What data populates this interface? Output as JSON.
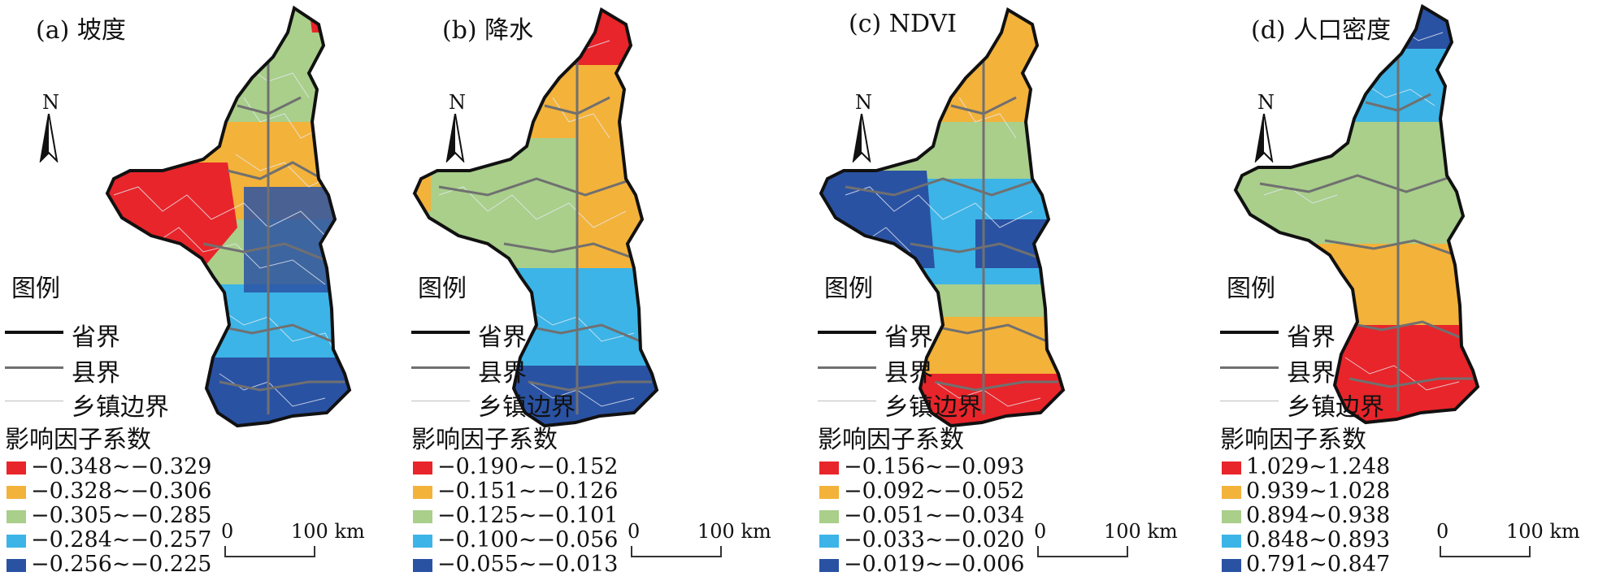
{
  "legend": {
    "title": "图例",
    "lines": [
      {
        "label": "省界",
        "color": "#111111",
        "width": 4
      },
      {
        "label": "县界",
        "color": "#707070",
        "width": 3
      },
      {
        "label": "乡镇边界",
        "color": "#bdbdbd",
        "width": 1
      }
    ],
    "coef_title": "影响因子系数"
  },
  "scale_bar": {
    "start": "0",
    "end": "100 km"
  },
  "north_label": "N",
  "class_colors": [
    "#e8252a",
    "#f3b23a",
    "#a9cf8b",
    "#3cb4e7",
    "#2a52a3"
  ],
  "panels": [
    {
      "title": "(a) 坡度",
      "classes": [
        "−0.348~−0.329",
        "−0.328~−0.306",
        "−0.305~−0.285",
        "−0.284~−0.257",
        "−0.256~−0.225"
      ],
      "zones_top_to_bottom": [
        "green",
        "yellow",
        "green",
        "blue",
        "dark-blue"
      ],
      "notes": "red in west lobe, dark blue in south"
    },
    {
      "title": "(b) 降水",
      "classes": [
        "−0.190~−0.152",
        "−0.151~−0.126",
        "−0.125~−0.101",
        "−0.100~−0.056",
        "−0.055~−0.013"
      ],
      "zones_top_to_bottom": [
        "red",
        "yellow",
        "green",
        "blue",
        "dark-blue"
      ]
    },
    {
      "title": "(c) NDVI",
      "classes": [
        "−0.156~−0.093",
        "−0.092~−0.052",
        "−0.051~−0.034",
        "−0.033~−0.020",
        "−0.019~−0.006"
      ],
      "zones_top_to_bottom": [
        "yellow",
        "green",
        "blue",
        "dark-blue",
        "red"
      ]
    },
    {
      "title": "(d) 人口密度",
      "classes": [
        "1.029~1.248",
        "0.939~1.028",
        "0.894~0.938",
        "0.848~0.893",
        "0.791~0.847"
      ],
      "zones_top_to_bottom": [
        "dark-blue",
        "blue",
        "green",
        "yellow",
        "red"
      ]
    }
  ]
}
